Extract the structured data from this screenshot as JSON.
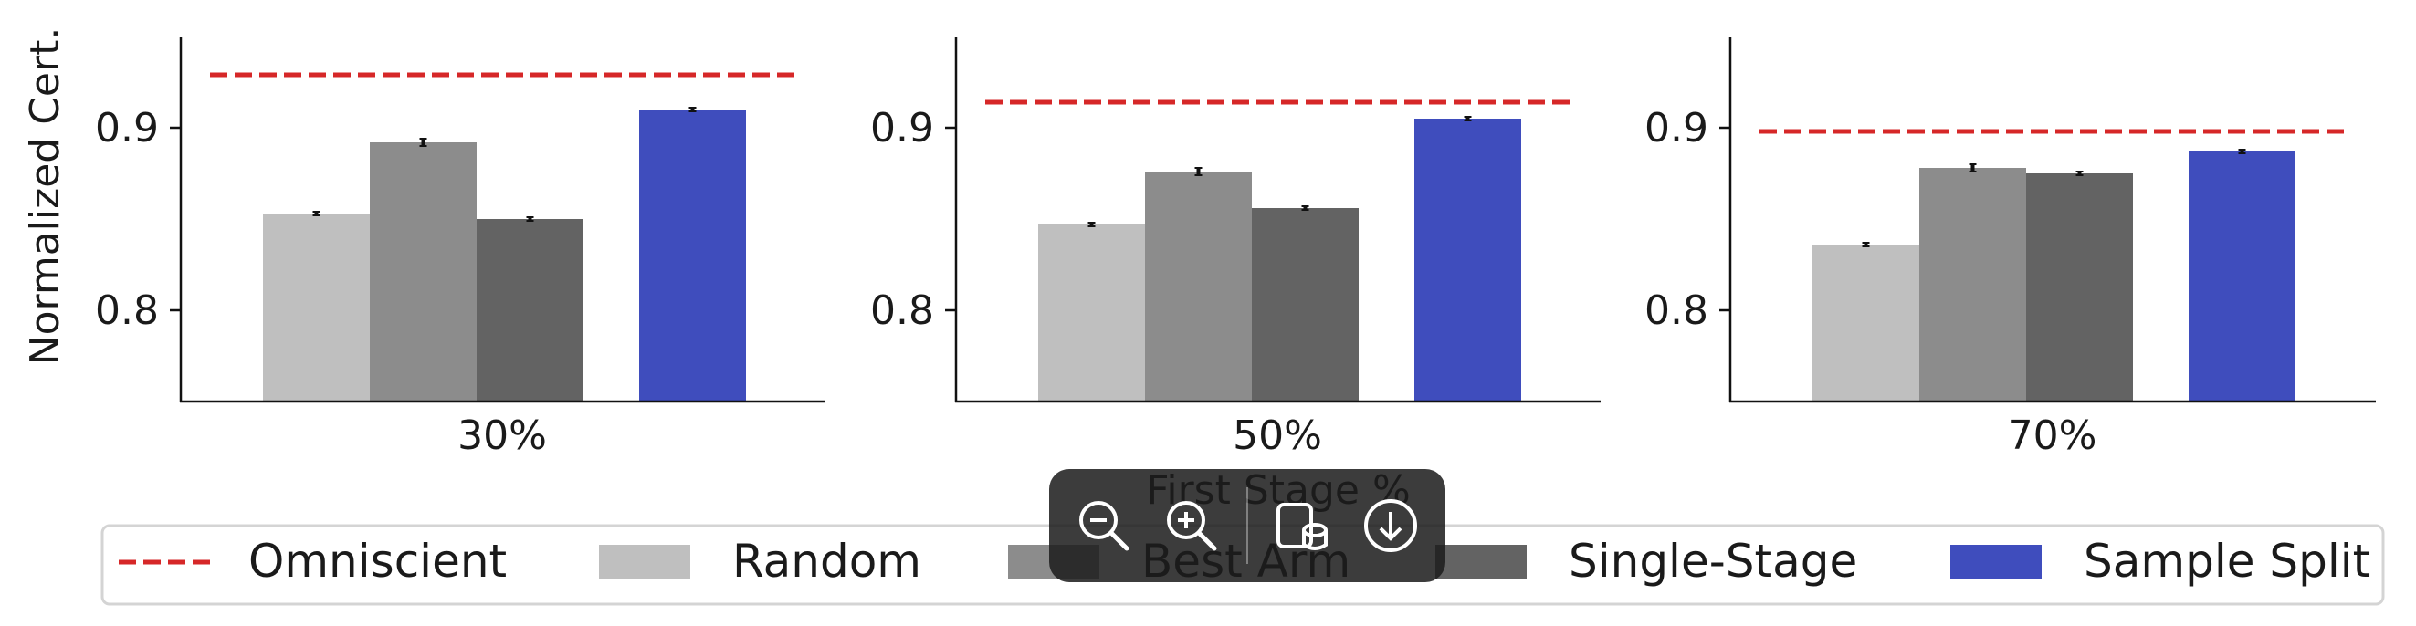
{
  "chart_data": {
    "type": "bar",
    "panels": [
      {
        "category": "30%",
        "omniscient": 0.929,
        "bars": [
          {
            "name": "Random",
            "value": 0.853,
            "err": 0.001
          },
          {
            "name": "Best Arm",
            "value": 0.892,
            "err": 0.002
          },
          {
            "name": "Single-Stage",
            "value": 0.85,
            "err": 0.001
          },
          {
            "name": "Sample Split",
            "value": 0.91,
            "err": 0.001
          }
        ]
      },
      {
        "category": "50%",
        "omniscient": 0.914,
        "bars": [
          {
            "name": "Random",
            "value": 0.847,
            "err": 0.001
          },
          {
            "name": "Best Arm",
            "value": 0.876,
            "err": 0.002
          },
          {
            "name": "Single-Stage",
            "value": 0.856,
            "err": 0.001
          },
          {
            "name": "Sample Split",
            "value": 0.905,
            "err": 0.001
          }
        ]
      },
      {
        "category": "70%",
        "omniscient": 0.898,
        "bars": [
          {
            "name": "Random",
            "value": 0.836,
            "err": 0.001
          },
          {
            "name": "Best Arm",
            "value": 0.878,
            "err": 0.002
          },
          {
            "name": "Single-Stage",
            "value": 0.875,
            "err": 0.001
          },
          {
            "name": "Sample Split",
            "value": 0.887,
            "err": 0.001
          }
        ]
      }
    ],
    "ylabel": "Normalized Cert.",
    "xlabel": "First Stage %",
    "ylim": [
      0.75,
      0.95
    ],
    "yticks": [
      0.8,
      0.9
    ],
    "grid": false,
    "legend": {
      "placement": "bottom",
      "entries": [
        {
          "name": "Omniscient",
          "style": "dashed-line",
          "color": "#d62728"
        },
        {
          "name": "Random",
          "style": "patch",
          "color": "#bfbfbf"
        },
        {
          "name": "Best Arm",
          "style": "patch",
          "color": "#8c8c8c"
        },
        {
          "name": "Single-Stage",
          "style": "patch",
          "color": "#636363"
        },
        {
          "name": "Sample Split",
          "style": "patch",
          "color": "#3f4dbd"
        }
      ]
    },
    "colors": {
      "Random": "#bfbfbf",
      "Best Arm": "#8c8c8c",
      "Single-Stage": "#636363",
      "Sample Split": "#3f4dbd",
      "Omniscient": "#d62728"
    }
  },
  "toolbar": {
    "icons": [
      "zoom-out-icon",
      "zoom-in-icon",
      "rotate-icon",
      "download-icon"
    ]
  }
}
